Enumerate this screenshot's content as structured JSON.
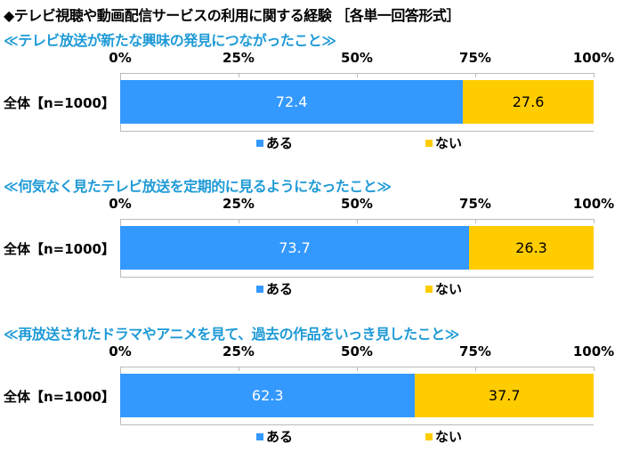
{
  "title": "◆テレビ視聴や動画配信サービスの利用に関する経験 ［各単一回答形式］",
  "colors": {
    "aru": "#3399ff",
    "nai": "#ffcc00",
    "subtitle": "#1e9ad6"
  },
  "chart_data": [
    {
      "type": "bar",
      "stacked": true,
      "orientation": "horizontal",
      "title": "≪テレビ放送が新たな興味の発見につながったこと≫",
      "categories": [
        "全体【n=1000】"
      ],
      "x_ticks": [
        "0%",
        "25%",
        "50%",
        "75%",
        "100%"
      ],
      "xlim": [
        0,
        100
      ],
      "series": [
        {
          "name": "ある",
          "values": [
            72.4
          ],
          "labels": [
            "72.4"
          ]
        },
        {
          "name": "ない",
          "values": [
            27.6
          ],
          "labels": [
            "27.6"
          ]
        }
      ],
      "legend": "bottom"
    },
    {
      "type": "bar",
      "stacked": true,
      "orientation": "horizontal",
      "title": "≪何気なく見たテレビ放送を定期的に見るようになったこと≫",
      "categories": [
        "全体【n=1000】"
      ],
      "x_ticks": [
        "0%",
        "25%",
        "50%",
        "75%",
        "100%"
      ],
      "xlim": [
        0,
        100
      ],
      "series": [
        {
          "name": "ある",
          "values": [
            73.7
          ],
          "labels": [
            "73.7"
          ]
        },
        {
          "name": "ない",
          "values": [
            26.3
          ],
          "labels": [
            "26.3"
          ]
        }
      ],
      "legend": "bottom"
    },
    {
      "type": "bar",
      "stacked": true,
      "orientation": "horizontal",
      "title": "≪再放送されたドラマやアニメを見て、過去の作品をいっき見したこと≫",
      "categories": [
        "全体【n=1000】"
      ],
      "x_ticks": [
        "0%",
        "25%",
        "50%",
        "75%",
        "100%"
      ],
      "xlim": [
        0,
        100
      ],
      "series": [
        {
          "name": "ある",
          "values": [
            62.3
          ],
          "labels": [
            "62.3"
          ]
        },
        {
          "name": "ない",
          "values": [
            37.7
          ],
          "labels": [
            "37.7"
          ]
        }
      ],
      "legend": "bottom"
    }
  ]
}
